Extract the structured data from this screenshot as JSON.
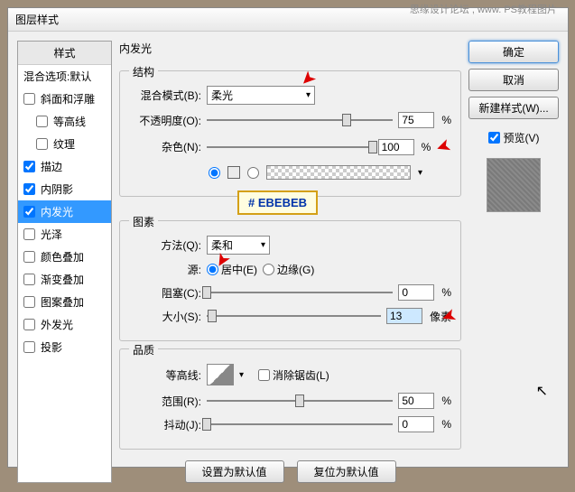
{
  "watermark": "思缘设计论坛 , www. PS教程图片",
  "title": "图层样式",
  "sidebar": {
    "header": "样式",
    "blending": "混合选项:默认",
    "items": [
      {
        "label": "斜面和浮雕",
        "checked": false
      },
      {
        "label": "等高线",
        "checked": false,
        "indent": true
      },
      {
        "label": "纹理",
        "checked": false,
        "indent": true
      },
      {
        "label": "描边",
        "checked": true
      },
      {
        "label": "内阴影",
        "checked": true
      },
      {
        "label": "内发光",
        "checked": true,
        "selected": true
      },
      {
        "label": "光泽",
        "checked": false
      },
      {
        "label": "颜色叠加",
        "checked": false
      },
      {
        "label": "渐变叠加",
        "checked": false
      },
      {
        "label": "图案叠加",
        "checked": false
      },
      {
        "label": "外发光",
        "checked": false
      },
      {
        "label": "投影",
        "checked": false
      }
    ]
  },
  "main": {
    "title": "内发光",
    "structure": {
      "title": "结构",
      "blendMode": {
        "label": "混合模式(B):",
        "value": "柔光"
      },
      "opacity": {
        "label": "不透明度(O):",
        "value": "75",
        "unit": "%",
        "thumb": 75
      },
      "noise": {
        "label": "杂色(N):",
        "value": "100",
        "unit": "%",
        "thumb": 100
      },
      "colorHex": "#EBEBEB"
    },
    "elements": {
      "title": "图素",
      "technique": {
        "label": "方法(Q):",
        "value": "柔和"
      },
      "sourceLabel": "源:",
      "center": {
        "label": "居中(E)",
        "checked": true
      },
      "edge": {
        "label": "边缘(G)",
        "checked": false
      },
      "choke": {
        "label": "阻塞(C):",
        "value": "0",
        "unit": "%",
        "thumb": 0
      },
      "size": {
        "label": "大小(S):",
        "value": "13",
        "unit": "像素",
        "thumb": 3
      }
    },
    "quality": {
      "title": "品质",
      "contourLabel": "等高线:",
      "antialias": {
        "label": "消除锯齿(L)",
        "checked": false
      },
      "range": {
        "label": "范围(R):",
        "value": "50",
        "unit": "%",
        "thumb": 50
      },
      "jitter": {
        "label": "抖动(J):",
        "value": "0",
        "unit": "%",
        "thumb": 0
      }
    },
    "defaultBtn": "设置为默认值",
    "resetBtn": "复位为默认值"
  },
  "buttons": {
    "ok": "确定",
    "cancel": "取消",
    "newStyle": "新建样式(W)...",
    "preview": "预览(V)"
  },
  "annotation": "# EBEBEB"
}
